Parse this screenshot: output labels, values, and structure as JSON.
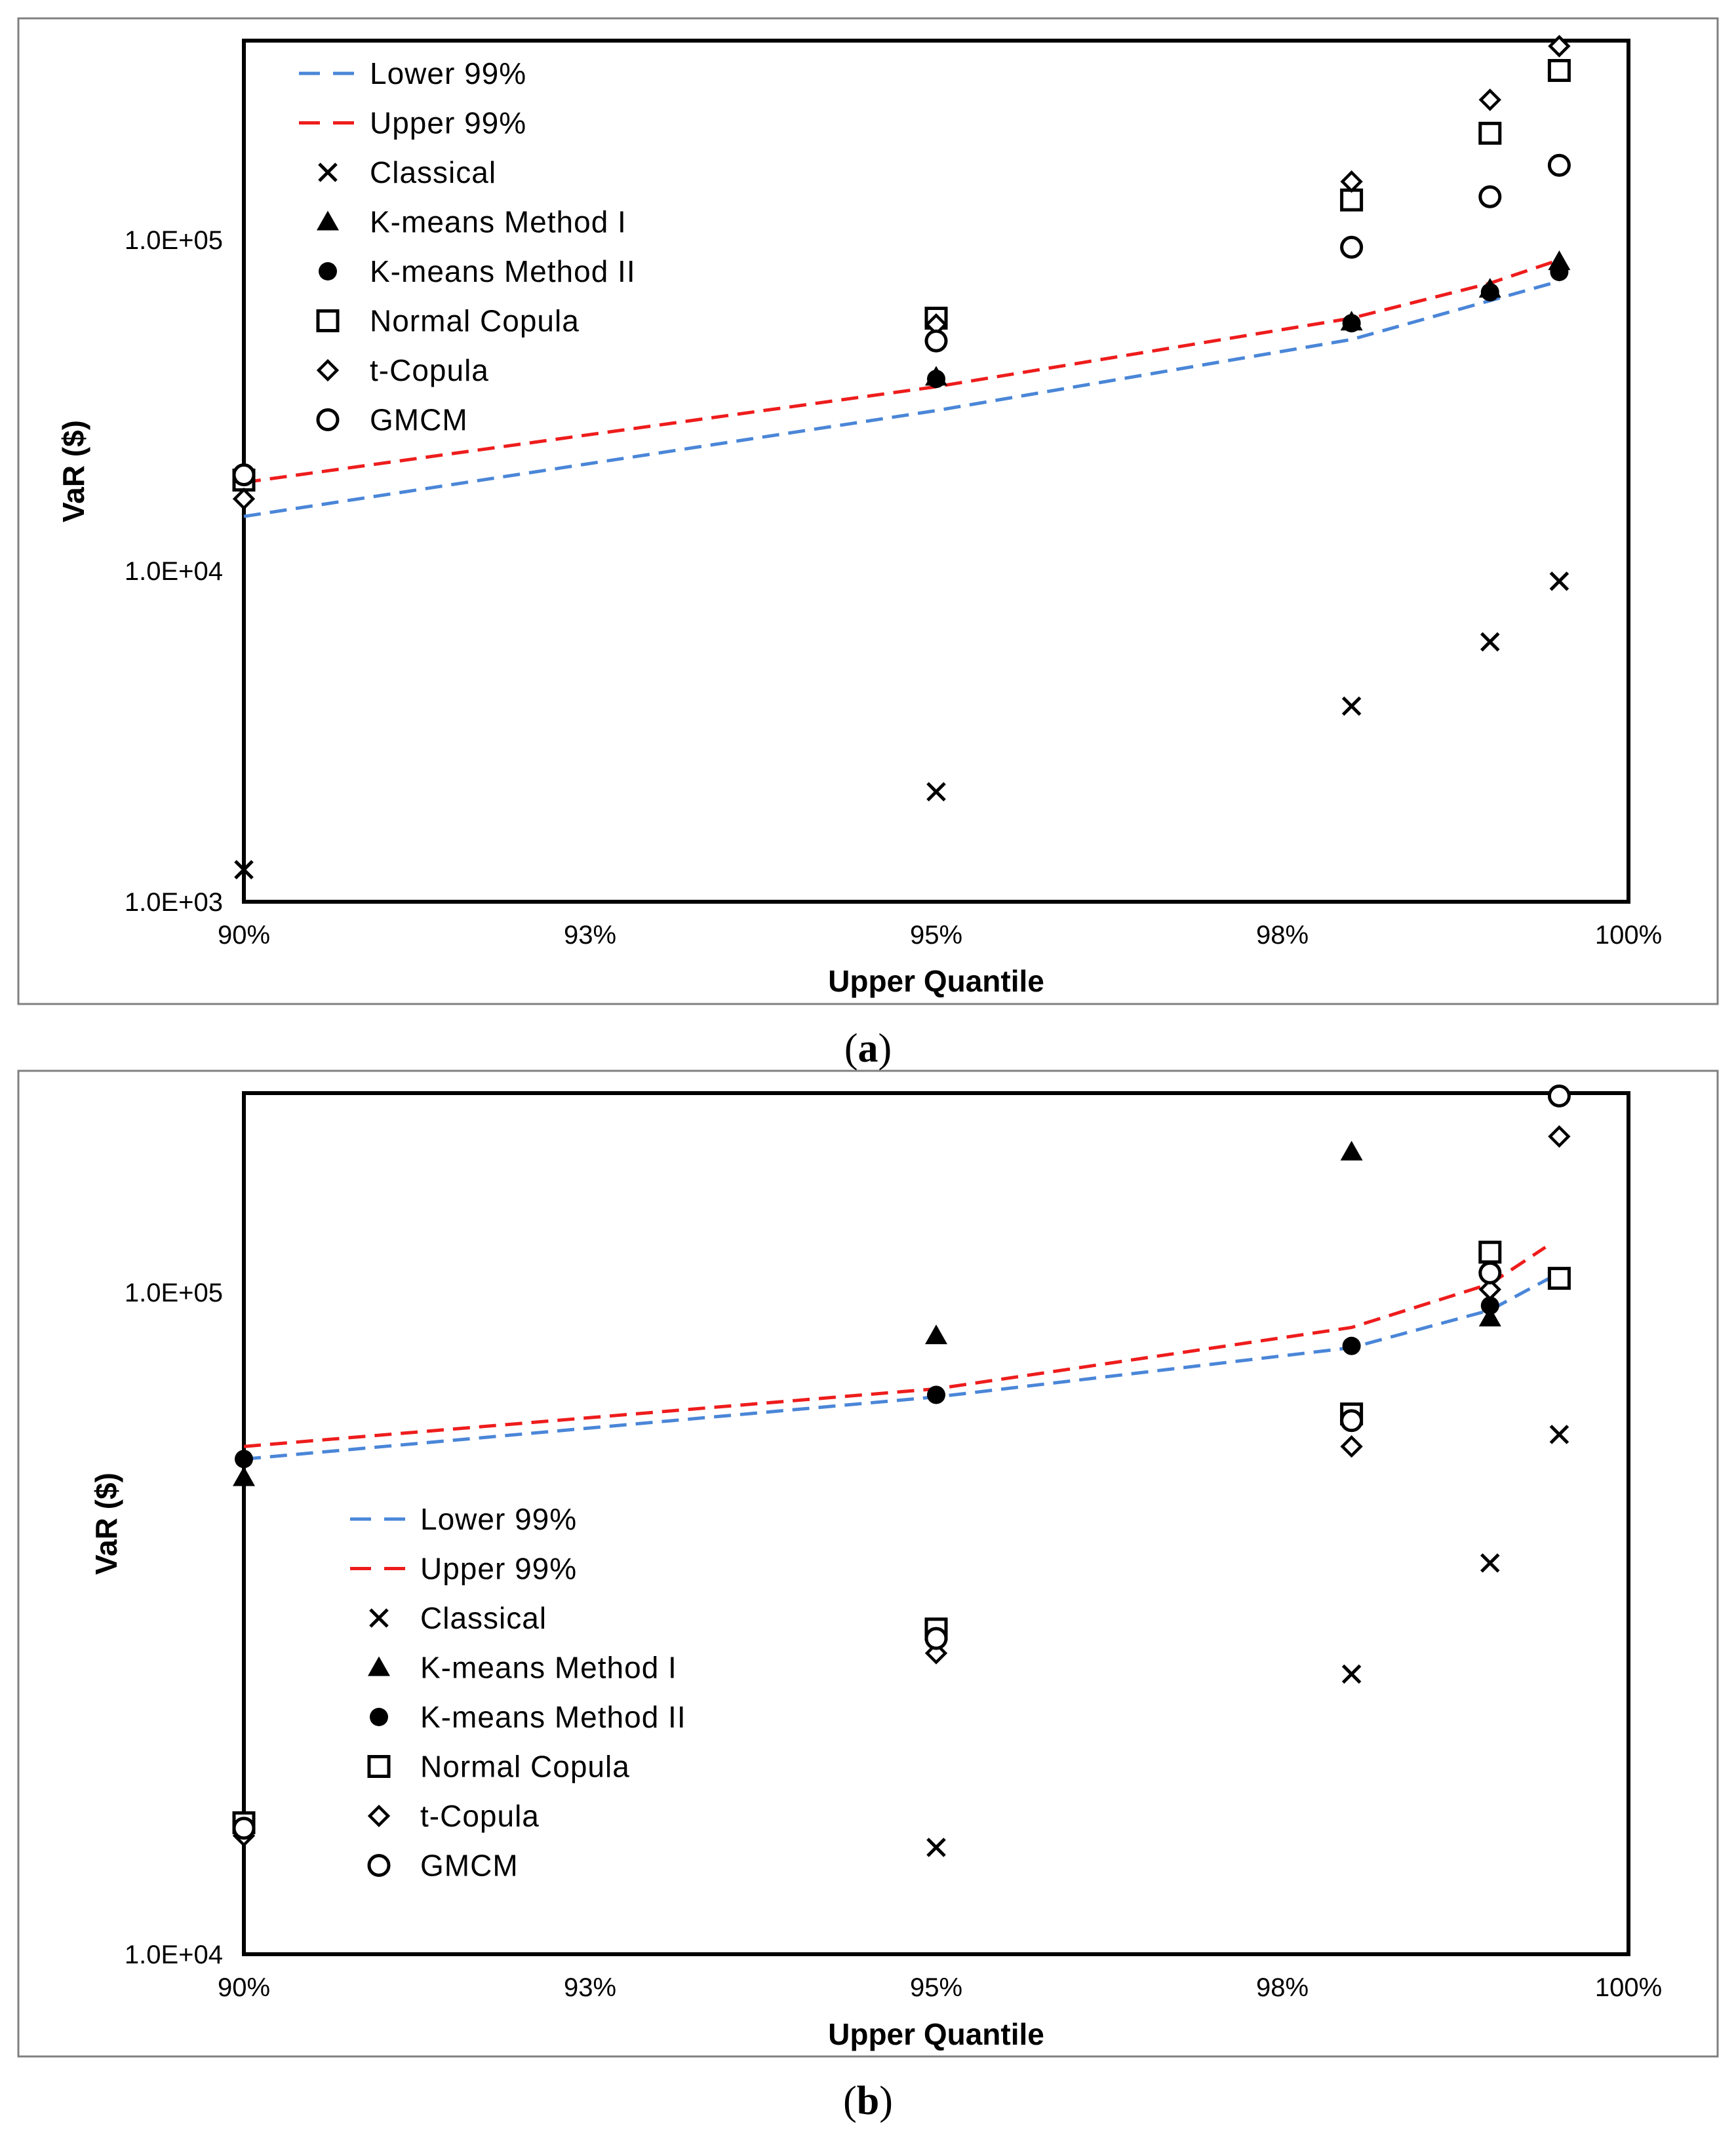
{
  "chart_data": [
    {
      "type": "scatter",
      "panel": "a",
      "caption_letter": "a",
      "xlabel": "Upper Quantile",
      "ylabel": "VaR ($)",
      "yscale": "log",
      "ylim": [
        1000,
        400000
      ],
      "xlim": [
        0.9,
        1.0
      ],
      "x_ticks": [
        0.9,
        0.925,
        0.95,
        0.975,
        1.0
      ],
      "x_tick_labels": [
        "90%",
        "93%",
        "95%",
        "98%",
        "100%"
      ],
      "y_ticks": [
        1000,
        10000,
        100000
      ],
      "y_tick_labels": [
        "1.0E+03",
        "1.0E+04",
        "1.0E+05"
      ],
      "legend_position": "top-left",
      "series": [
        {
          "name": "Lower 99%",
          "marker": "dash-line",
          "color": "#4a86d8",
          "x": [
            0.9,
            0.95,
            0.98,
            0.99,
            0.995
          ],
          "y": [
            14600,
            30500,
            50000,
            65500,
            75000
          ]
        },
        {
          "name": "Upper 99%",
          "marker": "dash-line",
          "color": "#ee1c1c",
          "x": [
            0.9,
            0.95,
            0.98,
            0.99,
            0.995
          ],
          "y": [
            18500,
            36000,
            58000,
            74000,
            87000
          ]
        },
        {
          "name": "Classical",
          "marker": "x",
          "color": "#000000",
          "x": [
            0.9,
            0.95,
            0.98,
            0.99,
            0.995
          ],
          "y": [
            1250,
            2150,
            3900,
            6100,
            9300
          ]
        },
        {
          "name": "K-means Method I",
          "marker": "triangle",
          "color": "#000000",
          "x": [
            0.9,
            0.95,
            0.98,
            0.99,
            0.995
          ],
          "y": [
            20000,
            38500,
            56500,
            71000,
            86000
          ]
        },
        {
          "name": "K-means Method II",
          "marker": "circle-filled",
          "color": "#000000",
          "x": [
            0.9,
            0.95,
            0.98,
            0.99,
            0.995
          ],
          "y": [
            19000,
            38000,
            56000,
            69500,
            80000
          ]
        },
        {
          "name": "Normal Copula",
          "marker": "square",
          "color": "#000000",
          "x": [
            0.9,
            0.95,
            0.98,
            0.99,
            0.995
          ],
          "y": [
            18800,
            58000,
            132000,
            210000,
            325000
          ]
        },
        {
          "name": "t-Copula",
          "marker": "diamond",
          "color": "#000000",
          "x": [
            0.9,
            0.95,
            0.98,
            0.99,
            0.995
          ],
          "y": [
            16500,
            55500,
            150000,
            265000,
            385000
          ]
        },
        {
          "name": "GMCM",
          "marker": "circle-open",
          "color": "#000000",
          "x": [
            0.9,
            0.95,
            0.98,
            0.99,
            0.995
          ],
          "y": [
            19500,
            49500,
            95000,
            135000,
            168000
          ]
        }
      ]
    },
    {
      "type": "scatter",
      "panel": "b",
      "caption_letter": "b",
      "xlabel": "Upper Quantile",
      "ylabel": "VaR ($)",
      "yscale": "log",
      "ylim": [
        10000,
        200000
      ],
      "xlim": [
        0.9,
        1.0
      ],
      "x_ticks": [
        0.9,
        0.925,
        0.95,
        0.975,
        1.0
      ],
      "x_tick_labels": [
        "90%",
        "93%",
        "95%",
        "98%",
        "100%"
      ],
      "y_ticks": [
        10000,
        100000
      ],
      "y_tick_labels": [
        "1.0E+04",
        "1.0E+05"
      ],
      "legend_position": "lower-left",
      "series": [
        {
          "name": "Lower 99%",
          "marker": "dash-line",
          "color": "#4a86d8",
          "x": [
            0.9,
            0.95,
            0.98,
            0.99,
            0.995
          ],
          "y": [
            56000,
            69500,
            82500,
            94000,
            107000
          ]
        },
        {
          "name": "Upper 99%",
          "marker": "dash-line",
          "color": "#ee1c1c",
          "x": [
            0.9,
            0.95,
            0.98,
            0.99,
            0.994
          ],
          "y": [
            58500,
            71500,
            88500,
            103000,
            117000
          ]
        },
        {
          "name": "Classical",
          "marker": "x",
          "color": "#000000",
          "x": [
            0.95,
            0.98,
            0.99,
            0.995
          ],
          "y": [
            14500,
            26500,
            39000,
            61000
          ]
        },
        {
          "name": "K-means Method I",
          "marker": "triangle",
          "color": "#000000",
          "x": [
            0.9,
            0.95,
            0.98,
            0.99,
            0.995
          ],
          "y": [
            52500,
            86000,
            163000,
            91500,
            105000
          ]
        },
        {
          "name": "K-means Method II",
          "marker": "circle-filled",
          "color": "#000000",
          "x": [
            0.9,
            0.95,
            0.98,
            0.99,
            0.995
          ],
          "y": [
            56000,
            70000,
            83000,
            95500,
            105500
          ]
        },
        {
          "name": "Normal Copula",
          "marker": "square",
          "color": "#000000",
          "x": [
            0.9,
            0.95,
            0.98,
            0.99,
            0.995
          ],
          "y": [
            15800,
            31000,
            65500,
            115000,
            105000
          ]
        },
        {
          "name": "t-Copula",
          "marker": "diamond",
          "color": "#000000",
          "x": [
            0.9,
            0.95,
            0.98,
            0.99,
            0.995
          ],
          "y": [
            15100,
            28500,
            58500,
            101000,
            172000
          ]
        },
        {
          "name": "GMCM",
          "marker": "circle-open",
          "color": "#000000",
          "x": [
            0.9,
            0.95,
            0.98,
            0.99,
            0.995
          ],
          "y": [
            15500,
            30000,
            64000,
            107000,
            198000
          ]
        }
      ]
    }
  ]
}
